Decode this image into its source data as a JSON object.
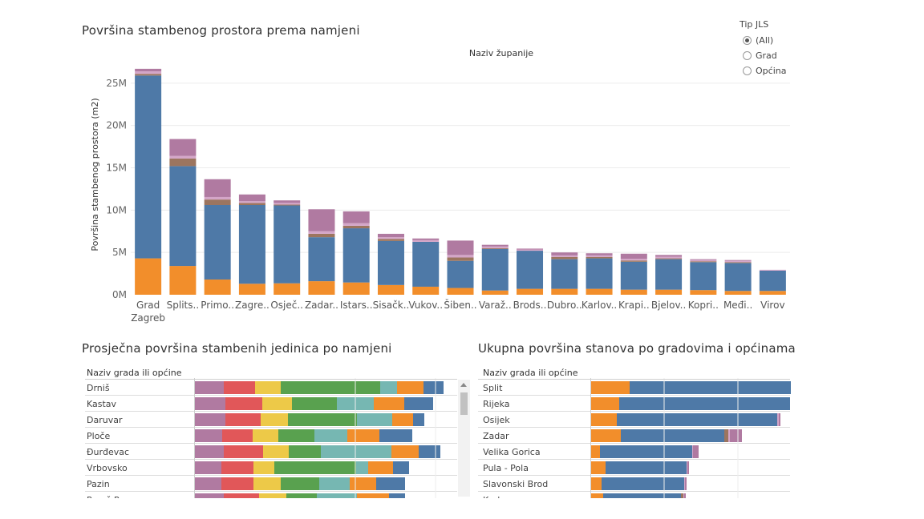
{
  "colors": {
    "orange": "#F28E2B",
    "blue": "#4E79A7",
    "brown": "#9C755F",
    "pink": "#D4A6C8",
    "mauve": "#B07AA1",
    "red": "#E15759",
    "yellow": "#EDC948",
    "green": "#59A14F",
    "teal": "#76B7B2",
    "grid": "#ececec"
  },
  "filter": {
    "title": "Tip JLS",
    "options": [
      "(All)",
      "Grad",
      "Općina"
    ],
    "selected": "(All)"
  },
  "chart_data": [
    {
      "type": "bar",
      "stacked": true,
      "title": "Površina stambenog prostora prema namjeni",
      "column_header": "Naziv županije",
      "ylabel": "Površina stambenog prostora (m2)",
      "xlabel": "",
      "ylim": [
        0,
        26500000
      ],
      "yticks": [
        0,
        5000000,
        10000000,
        15000000,
        20000000,
        25000000
      ],
      "ytick_labels": [
        "0M",
        "5M",
        "10M",
        "15M",
        "20M",
        "25M"
      ],
      "categories": [
        "Grad Zagreb",
        "Splits..",
        "Primo..",
        "Zagre..",
        "Osječ..",
        "Zadar..",
        "Istars..",
        "Sisačk..",
        "Vukov..",
        "Šiben..",
        "Varaž..",
        "Brods..",
        "Dubro..",
        "Karlov..",
        "Krapi..",
        "Bjelov..",
        "Kopri..",
        "Međi..",
        "Virov"
      ],
      "series": [
        {
          "name": "orange",
          "color": "orange",
          "values": [
            4300000,
            3400000,
            1800000,
            1300000,
            1350000,
            1600000,
            1450000,
            1150000,
            950000,
            800000,
            500000,
            700000,
            700000,
            700000,
            600000,
            600000,
            550000,
            450000,
            450000
          ]
        },
        {
          "name": "blue",
          "color": "blue",
          "values": [
            21600000,
            11800000,
            8800000,
            9300000,
            9200000,
            5200000,
            6400000,
            5200000,
            5300000,
            3200000,
            4900000,
            4500000,
            3500000,
            3600000,
            3300000,
            3600000,
            3300000,
            3300000,
            2400000
          ]
        },
        {
          "name": "brown",
          "color": "brown",
          "values": [
            200000,
            900000,
            650000,
            250000,
            100000,
            400000,
            300000,
            250000,
            0,
            400000,
            100000,
            0,
            250000,
            150000,
            150000,
            100000,
            100000,
            100000,
            0
          ]
        },
        {
          "name": "pink",
          "color": "pink",
          "values": [
            300000,
            300000,
            300000,
            200000,
            200000,
            300000,
            300000,
            200000,
            200000,
            300000,
            200000,
            150000,
            200000,
            200000,
            200000,
            200000,
            150000,
            150000,
            100000
          ]
        },
        {
          "name": "mauve",
          "color": "mauve",
          "values": [
            300000,
            2000000,
            2100000,
            800000,
            300000,
            2600000,
            1400000,
            400000,
            200000,
            1700000,
            200000,
            100000,
            350000,
            250000,
            600000,
            200000,
            100000,
            100000,
            0
          ]
        }
      ]
    },
    {
      "type": "bar",
      "orientation": "horizontal",
      "stacked": true,
      "normalized": true,
      "title": "Prosječna površina stambenih jedinica po namjeni",
      "row_header": "Naziv grada ili općine",
      "categories": [
        "Drniš",
        "Kastav",
        "Daruvar",
        "Ploče",
        "Đurđevac",
        "Vrbovsko",
        "Pazin",
        "Poreč-Parenzo"
      ],
      "series": [
        {
          "name": "mauve",
          "color": "mauve",
          "values": [
            36,
            38,
            38,
            34,
            36,
            33,
            33,
            36
          ]
        },
        {
          "name": "red",
          "color": "red",
          "values": [
            39,
            46,
            44,
            38,
            49,
            40,
            40,
            44
          ]
        },
        {
          "name": "yellow",
          "color": "yellow",
          "values": [
            32,
            37,
            34,
            32,
            32,
            26,
            34,
            34
          ]
        },
        {
          "name": "green",
          "color": "green",
          "values": [
            124,
            56,
            86,
            45,
            40,
            102,
            48,
            38
          ]
        },
        {
          "name": "teal",
          "color": "teal",
          "values": [
            21,
            46,
            44,
            41,
            88,
            15,
            38,
            50
          ]
        },
        {
          "name": "orange",
          "color": "orange",
          "values": [
            33,
            38,
            26,
            40,
            34,
            31,
            33,
            40
          ]
        },
        {
          "name": "blue",
          "color": "blue",
          "values": [
            25,
            36,
            14,
            41,
            27,
            20,
            36,
            20
          ]
        }
      ]
    },
    {
      "type": "bar",
      "orientation": "horizontal",
      "stacked": true,
      "title": "Ukupna površina stanova po gradovima i općinama",
      "row_header": "Naziv grada ili općine",
      "categories": [
        "Split",
        "Rijeka",
        "Osijek",
        "Zadar",
        "Velika Gorica",
        "Pula - Pola",
        "Slavonski Brod",
        "Karlovac"
      ],
      "series": [
        {
          "name": "orange",
          "color": "orange",
          "values": [
            48,
            35,
            32,
            37,
            11,
            18,
            13,
            15
          ]
        },
        {
          "name": "blue",
          "color": "blue",
          "values": [
            201,
            213,
            200,
            129,
            115,
            101,
            103,
            97
          ]
        },
        {
          "name": "brown",
          "color": "brown",
          "values": [
            0,
            0,
            0,
            5,
            0,
            0,
            0,
            3
          ]
        },
        {
          "name": "pink",
          "color": "pink",
          "values": [
            0,
            0,
            2,
            2,
            1,
            1,
            1,
            1
          ]
        },
        {
          "name": "mauve",
          "color": "mauve",
          "values": [
            0,
            0,
            2,
            15,
            7,
            2,
            2,
            2
          ]
        }
      ]
    }
  ]
}
